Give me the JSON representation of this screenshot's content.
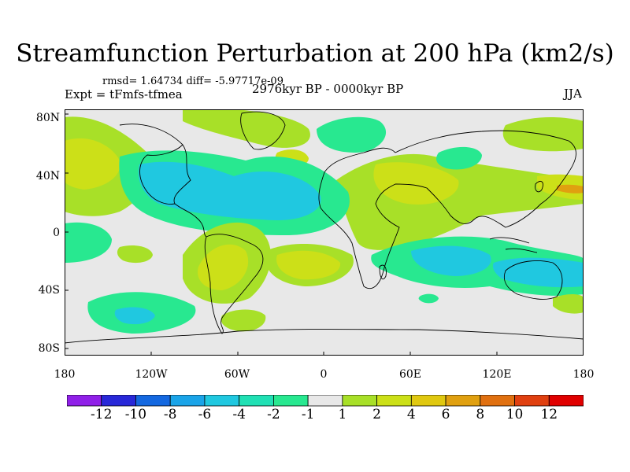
{
  "title": "Streamfunction Perturbation at 200 hPa (km2/s)",
  "stats": "rmsd= 1.64734  diff= -5.97717e-09",
  "experiment": "Expt = tFmfs-tfmea",
  "period": "2976kyr BP - 0000kyr BP",
  "season": "JJA",
  "lat_labels": [
    "80N",
    "40N",
    "0",
    "40S",
    "80S"
  ],
  "lon_labels": [
    "180",
    "120W",
    "60W",
    "0",
    "60E",
    "120E",
    "180"
  ],
  "colorbar": {
    "labels": [
      "-12",
      "-10",
      "-8",
      "-6",
      "-4",
      "-2",
      "-1",
      "1",
      "2",
      "4",
      "6",
      "8",
      "10",
      "12"
    ],
    "colors": [
      "#9020e8",
      "#2828d8",
      "#1468e0",
      "#1aa4e8",
      "#20c8e0",
      "#20e0b4",
      "#28e890",
      "#e8e8e8",
      "#a8e028",
      "#cce018",
      "#e0c810",
      "#e0a010",
      "#e07010",
      "#e04010",
      "#e00000"
    ]
  },
  "palette": {
    "neutral": "#e8e8e8",
    "neg1": "#28e890",
    "neg2": "#20c8e0",
    "neg3": "#1aa4e8",
    "pos1": "#a8e028",
    "pos2": "#cce018",
    "pos3": "#e0a010"
  }
}
